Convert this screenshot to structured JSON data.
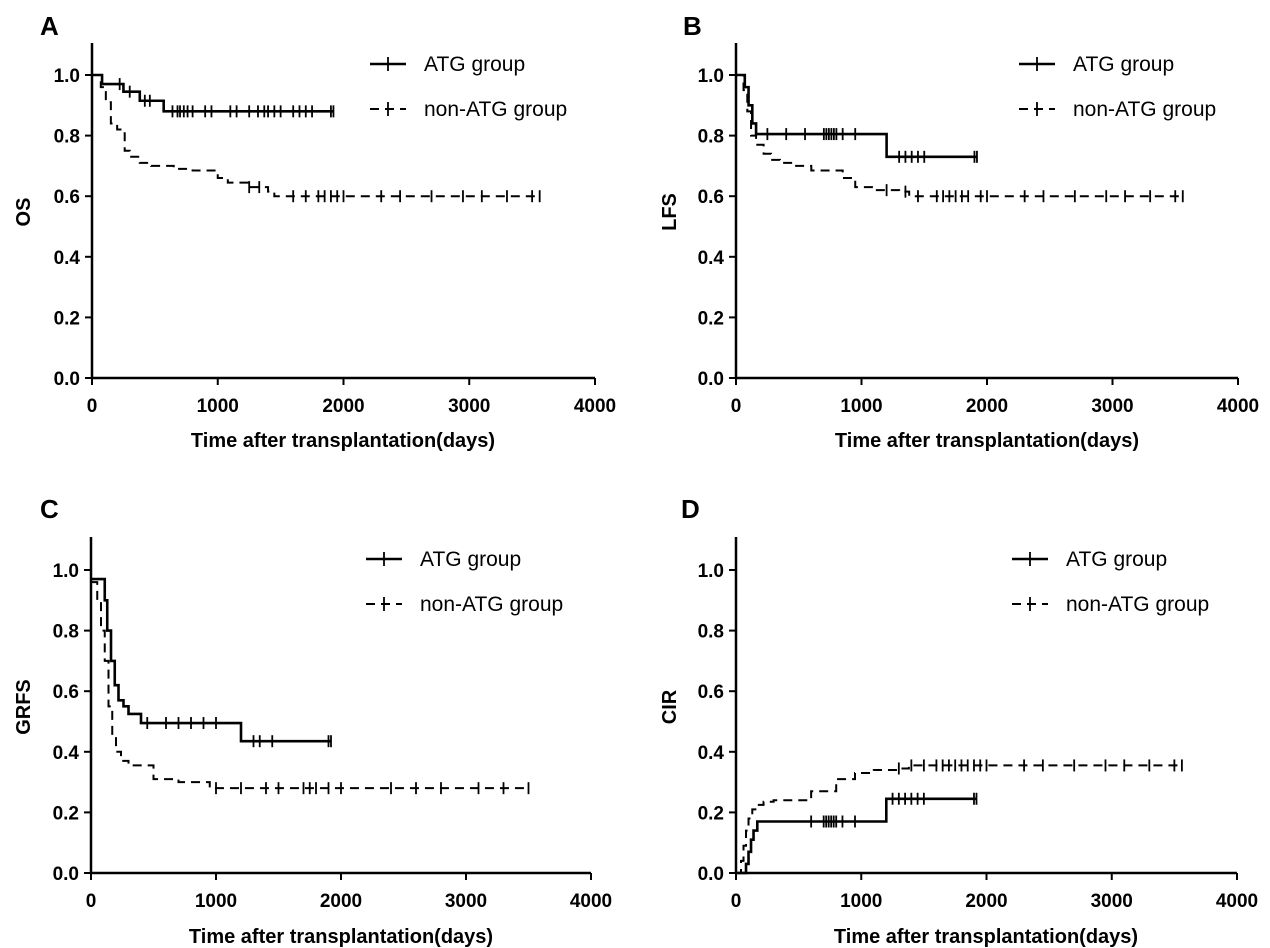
{
  "legend": {
    "series_a": "ATG group",
    "series_b": "non-ATG group"
  },
  "chart_data": [
    {
      "panel": "A",
      "type": "line",
      "step": true,
      "ylabel": "OS",
      "xlabel": "Time after transplantation(days)",
      "xlim": [
        0,
        4000
      ],
      "ylim": [
        0,
        1.0
      ],
      "xticks": [
        "0",
        "1000",
        "2000",
        "3000",
        "4000"
      ],
      "yticks": [
        "0.0",
        "0.2",
        "0.4",
        "0.6",
        "0.8",
        "1.0"
      ],
      "legend_position": "top-right",
      "series": [
        {
          "name": "ATG group",
          "style": "solid",
          "x": [
            0,
            80,
            250,
            380,
            570,
            1920
          ],
          "y": [
            1.0,
            0.97,
            0.945,
            0.915,
            0.88,
            0.88
          ],
          "censored_x": [
            220,
            300,
            420,
            460,
            640,
            680,
            700,
            730,
            760,
            800,
            900,
            950,
            1100,
            1150,
            1250,
            1320,
            1370,
            1400,
            1450,
            1500,
            1600,
            1650,
            1700,
            1750,
            1900,
            1920
          ]
        },
        {
          "name": "non-ATG group",
          "style": "dashed",
          "x": [
            0,
            70,
            110,
            150,
            200,
            260,
            300,
            380,
            470,
            650,
            800,
            1000,
            1080,
            1250,
            1400,
            1450,
            3560
          ],
          "y": [
            1.0,
            0.96,
            0.91,
            0.84,
            0.82,
            0.75,
            0.73,
            0.71,
            0.7,
            0.69,
            0.685,
            0.66,
            0.645,
            0.63,
            0.615,
            0.6,
            0.6
          ],
          "censored_x": [
            1250,
            1330,
            1600,
            1700,
            1800,
            1850,
            1900,
            1950,
            2000,
            2300,
            2450,
            2700,
            2950,
            3100,
            3300,
            3500,
            3560
          ]
        }
      ]
    },
    {
      "panel": "B",
      "type": "line",
      "step": true,
      "ylabel": "LFS",
      "xlabel": "Time after transplantation(days)",
      "xlim": [
        0,
        4000
      ],
      "ylim": [
        0,
        1.0
      ],
      "xticks": [
        "0",
        "1000",
        "2000",
        "3000",
        "4000"
      ],
      "yticks": [
        "0.0",
        "0.2",
        "0.4",
        "0.6",
        "0.8",
        "1.0"
      ],
      "legend_position": "top-right",
      "series": [
        {
          "name": "ATG group",
          "style": "solid",
          "x": [
            0,
            70,
            100,
            130,
            160,
            1200,
            1920
          ],
          "y": [
            1.0,
            0.96,
            0.9,
            0.84,
            0.805,
            0.73,
            0.73
          ],
          "censored_x": [
            250,
            400,
            550,
            700,
            720,
            740,
            760,
            780,
            800,
            850,
            950,
            1300,
            1350,
            1400,
            1450,
            1500,
            1900,
            1920
          ]
        },
        {
          "name": "non-ATG group",
          "style": "dashed",
          "x": [
            0,
            60,
            90,
            120,
            160,
            220,
            280,
            350,
            450,
            600,
            850,
            950,
            1100,
            1300,
            1380,
            3560
          ],
          "y": [
            1.0,
            0.95,
            0.88,
            0.8,
            0.77,
            0.74,
            0.72,
            0.71,
            0.7,
            0.685,
            0.66,
            0.63,
            0.62,
            0.615,
            0.6,
            0.6
          ],
          "censored_x": [
            1200,
            1350,
            1450,
            1600,
            1650,
            1700,
            1750,
            1800,
            1850,
            1950,
            2000,
            2300,
            2450,
            2700,
            2950,
            3100,
            3300,
            3500,
            3560
          ]
        }
      ]
    },
    {
      "panel": "C",
      "type": "line",
      "step": true,
      "ylabel": "GRFS",
      "xlabel": "Time after transplantation(days)",
      "xlim": [
        0,
        4000
      ],
      "ylim": [
        0,
        1.0
      ],
      "xticks": [
        "0",
        "1000",
        "2000",
        "3000",
        "4000"
      ],
      "yticks": [
        "0.0",
        "0.2",
        "0.4",
        "0.6",
        "0.8",
        "1.0"
      ],
      "legend_position": "top-right",
      "series": [
        {
          "name": "ATG group",
          "style": "solid",
          "x": [
            0,
            80,
            110,
            130,
            160,
            190,
            220,
            260,
            300,
            400,
            1200,
            1920
          ],
          "y": [
            0.97,
            0.97,
            0.9,
            0.8,
            0.7,
            0.62,
            0.57,
            0.55,
            0.525,
            0.495,
            0.435,
            0.435
          ],
          "censored_x": [
            450,
            600,
            700,
            800,
            900,
            1000,
            1300,
            1350,
            1450,
            1900,
            1920
          ]
        },
        {
          "name": "non-ATG group",
          "style": "dashed",
          "x": [
            0,
            50,
            80,
            110,
            140,
            170,
            200,
            240,
            300,
            500,
            700,
            950,
            3500
          ],
          "y": [
            0.96,
            0.9,
            0.8,
            0.7,
            0.55,
            0.45,
            0.4,
            0.37,
            0.355,
            0.31,
            0.3,
            0.28,
            0.28
          ],
          "censored_x": [
            1000,
            1200,
            1400,
            1500,
            1700,
            1750,
            1800,
            1900,
            2000,
            2400,
            2600,
            2800,
            3100,
            3300,
            3500
          ]
        }
      ]
    },
    {
      "panel": "D",
      "type": "line",
      "step": true,
      "ylabel": "CIR",
      "xlabel": "Time after transplantation(days)",
      "xlim": [
        0,
        4000
      ],
      "ylim": [
        0,
        1.0
      ],
      "xticks": [
        "0",
        "1000",
        "2000",
        "3000",
        "4000"
      ],
      "yticks": [
        "0.0",
        "0.2",
        "0.4",
        "0.6",
        "0.8",
        "1.0"
      ],
      "legend_position": "top-right",
      "series": [
        {
          "name": "ATG group",
          "style": "solid",
          "x": [
            0,
            80,
            100,
            120,
            140,
            170,
            1200,
            1920
          ],
          "y": [
            0.0,
            0.03,
            0.07,
            0.11,
            0.14,
            0.17,
            0.245,
            0.245
          ],
          "censored_x": [
            600,
            700,
            720,
            740,
            760,
            780,
            800,
            850,
            950,
            1250,
            1300,
            1350,
            1400,
            1450,
            1500,
            1900,
            1920
          ]
        },
        {
          "name": "non-ATG group",
          "style": "dashed",
          "x": [
            0,
            40,
            60,
            80,
            100,
            130,
            170,
            220,
            300,
            600,
            800,
            950,
            1100,
            1300,
            1380,
            3560
          ],
          "y": [
            0.0,
            0.04,
            0.09,
            0.14,
            0.18,
            0.21,
            0.225,
            0.235,
            0.24,
            0.27,
            0.31,
            0.33,
            0.34,
            0.345,
            0.355,
            0.355
          ],
          "censored_x": [
            1300,
            1400,
            1500,
            1600,
            1650,
            1700,
            1750,
            1800,
            1850,
            1900,
            1950,
            2000,
            2300,
            2450,
            2700,
            2950,
            3100,
            3300,
            3500,
            3560
          ]
        }
      ]
    }
  ]
}
